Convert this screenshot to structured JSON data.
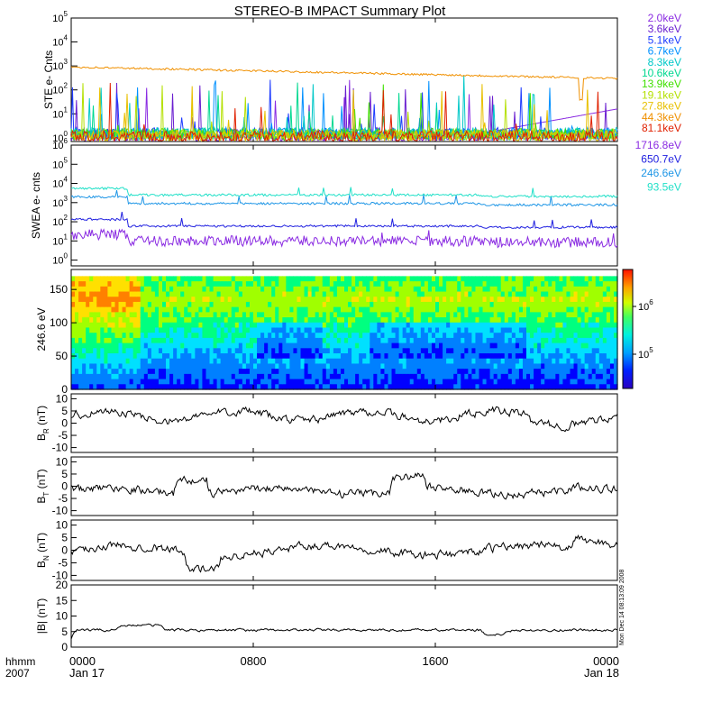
{
  "title": "STEREO-B IMPACT Summary Plot",
  "stamp": "Mon Dec 14 08:13:09 2008",
  "x_axis": {
    "corner_top": "hhmm",
    "corner_bottom": "2007",
    "ticks": [
      {
        "label": "0000",
        "sub": "Jan 17",
        "x": 0
      },
      {
        "label": "0800",
        "sub": "",
        "x": 8
      },
      {
        "label": "1600",
        "sub": "",
        "x": 16
      },
      {
        "label": "0000",
        "sub": "Jan 18",
        "x": 24
      }
    ],
    "xlim": [
      0,
      24
    ]
  },
  "colors": {
    "ste": [
      "#8a2be2",
      "#6a1fd0",
      "#1e3cff",
      "#0090ff",
      "#00c8c8",
      "#00d890",
      "#40e000",
      "#b4e000",
      "#e8c000",
      "#f09000",
      "#e02000"
    ],
    "swea": [
      "#8a2be2",
      "#2020e0",
      "#1e96e6",
      "#20e0c8"
    ],
    "spectro": [
      "#1400a0",
      "#0000ff",
      "#0080ff",
      "#00e0ff",
      "#00ff80",
      "#a0ff00",
      "#ffe000",
      "#ff8000",
      "#ff0000"
    ]
  },
  "chart_data": [
    {
      "type": "line",
      "ylabel": "STE e- Cnts",
      "yscale": "log",
      "ylim": [
        0.7,
        100000
      ],
      "yticks": [
        "10^0",
        "10^1",
        "10^2",
        "10^3",
        "10^4",
        "10^5"
      ],
      "series": [
        {
          "name": "2.0keV",
          "level": 1.2
        },
        {
          "name": "3.6keV",
          "level": 1.2
        },
        {
          "name": "5.1keV",
          "level": 1.5
        },
        {
          "name": "6.7keV",
          "level": 1.5
        },
        {
          "name": "8.3keV",
          "level": 1.5
        },
        {
          "name": "10.6keV",
          "level": 1.4
        },
        {
          "name": "13.9keV",
          "level": 1.4
        },
        {
          "name": "19.1keV",
          "level": 1.3
        },
        {
          "name": "27.8keV",
          "level": 1.2
        },
        {
          "name": "44.3keV",
          "level": 900,
          "shape": "decline",
          "end": 300
        },
        {
          "name": "81.1keV",
          "level": 1.1
        }
      ]
    },
    {
      "type": "line",
      "ylabel": "SWEA e- cnts",
      "yscale": "log",
      "ylim": [
        0.5,
        1000000
      ],
      "yticks": [
        "10^0",
        "10^1",
        "10^2",
        "10^3",
        "10^4",
        "10^5",
        "10^6"
      ],
      "series": [
        {
          "name": "1716.8eV",
          "level": 10
        },
        {
          "name": "650.7eV",
          "level": 60
        },
        {
          "name": "246.6eV",
          "level": 900
        },
        {
          "name": "93.5eV",
          "level": 2500
        }
      ]
    },
    {
      "type": "heatmap",
      "ylabel": "246.6 eV",
      "ylim": [
        0,
        180
      ],
      "yticks": [
        0,
        50,
        100,
        150
      ],
      "colorbar_ticks": [
        "10^6",
        "10^5"
      ]
    },
    {
      "type": "line",
      "ylabel": "B",
      "ylabel_sub": "R",
      "yunit": "(nT)",
      "ylim": [
        -12,
        12
      ],
      "yticks": [
        10,
        5,
        0,
        -5,
        -10
      ]
    },
    {
      "type": "line",
      "ylabel": "B",
      "ylabel_sub": "T",
      "yunit": "(nT)",
      "ylim": [
        -12,
        12
      ],
      "yticks": [
        10,
        5,
        0,
        -5,
        -10
      ]
    },
    {
      "type": "line",
      "ylabel": "B",
      "ylabel_sub": "N",
      "yunit": "(nT)",
      "ylim": [
        -12,
        12
      ],
      "yticks": [
        10,
        5,
        0,
        -5,
        -10
      ]
    },
    {
      "type": "line",
      "ylabel": "|B| (nT)",
      "ylim": [
        0,
        20
      ],
      "yticks": [
        20,
        15,
        10,
        5,
        0
      ]
    }
  ]
}
